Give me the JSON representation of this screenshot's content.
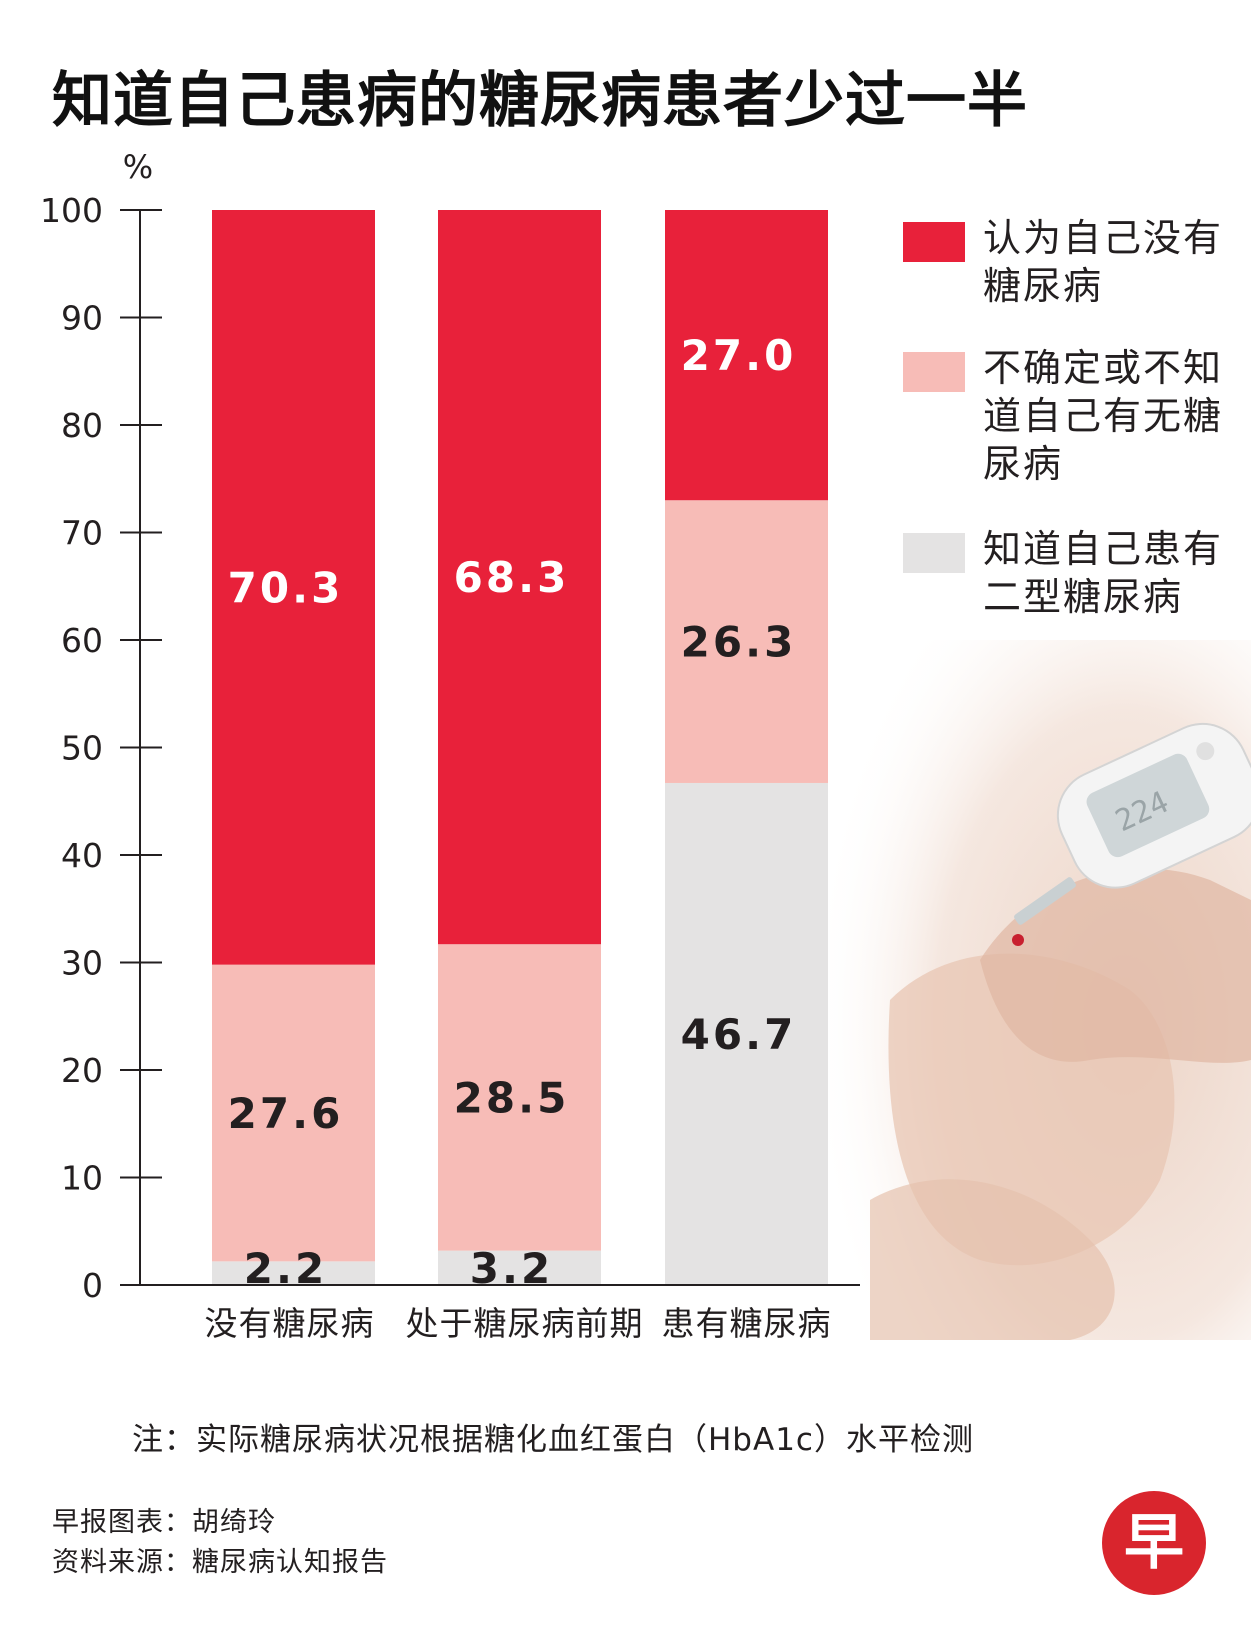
{
  "title": "知道自己患病的糖尿病患者少过一半",
  "colors": {
    "deny": "#e8213a",
    "unsure": "#f7bcb7",
    "aware": "#e4e3e3",
    "axis": "#231f20",
    "label_light": "#ffffff",
    "label_dark": "#231f20",
    "logo_red": "#d9252d"
  },
  "legend": [
    {
      "label": "认为自己没有糖尿病",
      "color_key": "deny"
    },
    {
      "label": "不确定或不知道自己有无糖尿病",
      "color_key": "unsure"
    },
    {
      "label": "知道自己患有二型糖尿病",
      "color_key": "aware"
    }
  ],
  "chart_data": {
    "type": "bar",
    "stacked": true,
    "title": "知道自己患病的糖尿病患者少过一半",
    "ylabel": "%",
    "ylim": [
      0,
      100
    ],
    "yticks": [
      0,
      10,
      20,
      30,
      40,
      50,
      60,
      70,
      80,
      90,
      100
    ],
    "categories": [
      "没有糖尿病",
      "处于糖尿病前期",
      "患有糖尿病"
    ],
    "series": [
      {
        "name": "知道自己患有二型糖尿病",
        "values": [
          2.2,
          3.2,
          46.7
        ],
        "value_labels": [
          "2.2",
          "3.2",
          "46.7"
        ]
      },
      {
        "name": "不确定或不知道自己有无糖尿病",
        "values": [
          27.6,
          28.5,
          26.3
        ],
        "value_labels": [
          "27.6",
          "28.5",
          "26.3"
        ]
      },
      {
        "name": "认为自己没有糖尿病",
        "values": [
          70.3,
          68.3,
          27.0
        ],
        "value_labels": [
          "70.3",
          "68.3",
          "27.0"
        ]
      }
    ],
    "legend_position": "right"
  },
  "note": "注：实际糖尿病状况根据糖化血红蛋白（HbA1c）水平检测",
  "credits": {
    "graphic": "早报图表：胡绮玲",
    "source": "资料来源：糖尿病认知报告"
  },
  "logo": {
    "icon": "zaobao-logo",
    "char": "早"
  },
  "photo": {
    "icon": "glucose-meter-photo"
  }
}
